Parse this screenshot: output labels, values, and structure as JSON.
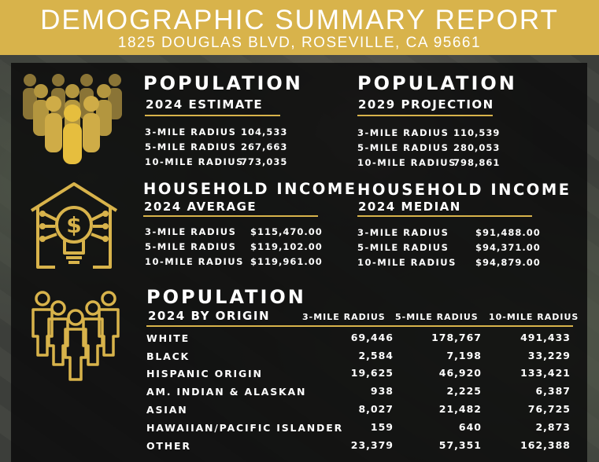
{
  "header": {
    "title": "DEMOGRAPHIC SUMMARY REPORT",
    "address": "1825 DOUGLAS BLVD, ROSEVILLE, CA 95661"
  },
  "colors": {
    "gold": "#d8b34b",
    "panel": "#0c0c0c",
    "text": "#ffffff"
  },
  "icons": [
    "people-crowd-icon",
    "house-lightbulb-dollar-icon",
    "people-group-icon"
  ],
  "population_2024": {
    "title": "POPULATION",
    "subtitle": "2024 ESTIMATE",
    "rows": [
      {
        "label": "3-MILE RADIUS",
        "value": "104,533"
      },
      {
        "label": "5-MILE RADIUS",
        "value": "267,663"
      },
      {
        "label": "10-MILE RADIUS",
        "value": "773,035"
      }
    ]
  },
  "population_2029": {
    "title": "POPULATION",
    "subtitle": "2029 PROJECTION",
    "rows": [
      {
        "label": "3-MILE RADIUS",
        "value": "110,539"
      },
      {
        "label": "5-MILE RADIUS",
        "value": "280,053"
      },
      {
        "label": "10-MILE RADIUS",
        "value": "798,861"
      }
    ]
  },
  "income_average": {
    "title": "HOUSEHOLD INCOME",
    "subtitle": "2024 AVERAGE",
    "rows": [
      {
        "label": "3-MILE RADIUS",
        "value": "$115,470.00"
      },
      {
        "label": "5-MILE RADIUS",
        "value": "$119,102.00"
      },
      {
        "label": "10-MILE RADIUS",
        "value": "$119,961.00"
      }
    ]
  },
  "income_median": {
    "title": "HOUSEHOLD INCOME",
    "subtitle": "2024 MEDIAN",
    "rows": [
      {
        "label": "3-MILE RADIUS",
        "value": "$91,488.00"
      },
      {
        "label": "5-MILE RADIUS",
        "value": "$94,371.00"
      },
      {
        "label": "10-MILE RADIUS",
        "value": "$94,879.00"
      }
    ]
  },
  "origin": {
    "title": "POPULATION",
    "subtitle": "2024 BY ORIGIN",
    "columns": [
      "3-MILE RADIUS",
      "5-MILE RADIUS",
      "10-MILE RADIUS"
    ],
    "rows": [
      {
        "label": "WHITE",
        "values": [
          "69,446",
          "178,767",
          "491,433"
        ]
      },
      {
        "label": "BLACK",
        "values": [
          "2,584",
          "7,198",
          "33,229"
        ]
      },
      {
        "label": "HISPANIC ORIGIN",
        "values": [
          "19,625",
          "46,920",
          "133,421"
        ]
      },
      {
        "label": "AM. INDIAN & ALASKAN",
        "values": [
          "938",
          "2,225",
          "6,387"
        ]
      },
      {
        "label": "ASIAN",
        "values": [
          "8,027",
          "21,482",
          "76,725"
        ]
      },
      {
        "label": "HAWAIIAN/PACIFIC ISLANDER",
        "values": [
          "159",
          "640",
          "2,873"
        ]
      },
      {
        "label": "OTHER",
        "values": [
          "23,379",
          "57,351",
          "162,388"
        ]
      }
    ]
  }
}
